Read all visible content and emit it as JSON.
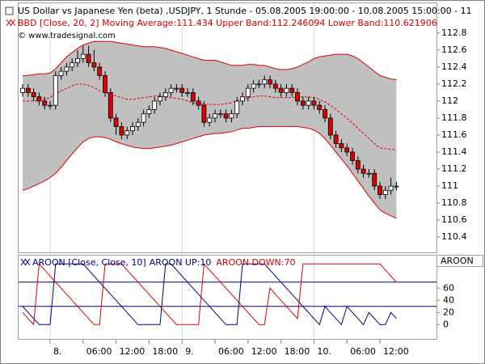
{
  "chart_data": [
    {
      "type": "candlestick",
      "title": "US Dollar vs Japanese Yen (beta) ,USDJPY, 1 Stunde - 05.08.2005 19:00:00 - 10.08.2005 15:00:00 - 11",
      "subtitle": "BBD [Close, 20, 2] Moving Average:111.434 Upper Band:112.246094 Lower Band:110.621906",
      "credit": "© www.tradesignal.com",
      "categories": [
        null,
        null,
        null,
        null,
        null,
        "8.",
        null,
        null,
        null,
        null,
        null,
        "06:00",
        null,
        null,
        null,
        null,
        null,
        "12:00",
        null,
        null,
        null,
        null,
        null,
        "18:00",
        null,
        null,
        null,
        null,
        null,
        "9.",
        null,
        null,
        null,
        null,
        null,
        "06:00",
        null,
        null,
        null,
        null,
        null,
        "12:00",
        null,
        null,
        null,
        null,
        null,
        "18:00",
        null,
        null,
        null,
        null,
        null,
        "10.",
        null,
        null,
        null,
        null,
        null,
        "06:00",
        null,
        null,
        null,
        null,
        null,
        "12:00",
        null,
        null,
        null
      ],
      "open": [
        112.1,
        112.15,
        112.1,
        112.05,
        112.0,
        111.95,
        111.95,
        112.3,
        112.35,
        112.4,
        112.45,
        112.5,
        112.55,
        112.45,
        112.4,
        112.3,
        112.1,
        111.8,
        111.7,
        111.6,
        111.65,
        111.7,
        111.75,
        111.85,
        111.9,
        112.0,
        112.05,
        112.1,
        112.15,
        112.15,
        112.1,
        112.1,
        112.0,
        111.95,
        111.75,
        111.8,
        111.85,
        111.85,
        111.8,
        111.85,
        112.0,
        112.05,
        112.15,
        112.2,
        112.2,
        112.25,
        112.2,
        112.15,
        112.1,
        112.15,
        112.1,
        112.0,
        111.95,
        112.0,
        111.95,
        111.9,
        111.8,
        111.6,
        111.5,
        111.45,
        111.4,
        111.3,
        111.2,
        111.15,
        111.15,
        111.0,
        110.9,
        110.95,
        111.0
      ],
      "high": [
        112.2,
        112.2,
        112.15,
        112.1,
        112.05,
        112.0,
        112.35,
        112.4,
        112.45,
        112.5,
        112.6,
        112.65,
        112.65,
        112.6,
        112.45,
        112.35,
        112.15,
        111.85,
        111.75,
        111.7,
        111.75,
        111.8,
        111.9,
        111.95,
        112.05,
        112.1,
        112.15,
        112.2,
        112.2,
        112.2,
        112.15,
        112.15,
        112.05,
        112.0,
        111.85,
        111.9,
        111.9,
        111.9,
        111.9,
        112.05,
        112.1,
        112.2,
        112.25,
        112.25,
        112.3,
        112.3,
        112.25,
        112.2,
        112.2,
        112.2,
        112.15,
        112.05,
        112.05,
        112.05,
        112.0,
        111.95,
        111.85,
        111.65,
        111.55,
        111.5,
        111.45,
        111.35,
        111.25,
        111.2,
        111.2,
        111.05,
        111.0,
        111.1,
        111.05
      ],
      "low": [
        112.05,
        112.05,
        112.0,
        111.95,
        111.9,
        111.9,
        111.9,
        112.25,
        112.3,
        112.35,
        112.4,
        112.45,
        112.4,
        112.35,
        112.25,
        112.05,
        111.75,
        111.6,
        111.55,
        111.55,
        111.6,
        111.65,
        111.7,
        111.8,
        111.85,
        111.95,
        112.0,
        112.05,
        112.1,
        112.05,
        112.05,
        111.95,
        111.9,
        111.7,
        111.7,
        111.75,
        111.8,
        111.75,
        111.75,
        111.8,
        111.95,
        112.0,
        112.1,
        112.15,
        112.15,
        112.15,
        112.1,
        112.05,
        112.05,
        112.05,
        111.95,
        111.9,
        111.9,
        111.9,
        111.85,
        111.75,
        111.55,
        111.45,
        111.4,
        111.35,
        111.25,
        111.15,
        111.1,
        111.1,
        110.95,
        110.85,
        110.85,
        110.9,
        110.95
      ],
      "close": [
        112.15,
        112.1,
        112.05,
        112.0,
        111.95,
        111.95,
        112.3,
        112.35,
        112.4,
        112.45,
        112.5,
        112.55,
        112.45,
        112.4,
        112.3,
        112.1,
        111.8,
        111.7,
        111.6,
        111.65,
        111.7,
        111.75,
        111.85,
        111.9,
        112.0,
        112.05,
        112.1,
        112.15,
        112.15,
        112.1,
        112.1,
        112.0,
        111.95,
        111.75,
        111.8,
        111.85,
        111.85,
        111.8,
        111.85,
        112.0,
        112.05,
        112.15,
        112.2,
        112.2,
        112.25,
        112.2,
        112.15,
        112.1,
        112.15,
        112.1,
        112.0,
        111.95,
        112.0,
        111.95,
        111.9,
        111.8,
        111.6,
        111.5,
        111.45,
        111.4,
        111.3,
        111.2,
        111.15,
        111.15,
        111.0,
        110.9,
        110.95,
        111.0,
        111.0
      ],
      "upper": [
        112.3,
        112.3,
        112.31,
        112.32,
        112.32,
        112.33,
        112.38,
        112.45,
        112.52,
        112.57,
        112.62,
        112.66,
        112.68,
        112.7,
        112.7,
        112.7,
        112.7,
        112.69,
        112.68,
        112.67,
        112.66,
        112.65,
        112.64,
        112.64,
        112.64,
        112.63,
        112.62,
        112.6,
        112.58,
        112.56,
        112.54,
        112.52,
        112.5,
        112.48,
        112.48,
        112.48,
        112.46,
        112.44,
        112.42,
        112.42,
        112.42,
        112.43,
        112.43,
        112.42,
        112.42,
        112.4,
        112.38,
        112.37,
        112.37,
        112.38,
        112.4,
        112.43,
        112.46,
        112.5,
        112.52,
        112.53,
        112.54,
        112.55,
        112.55,
        112.55,
        112.53,
        112.5,
        112.45,
        112.4,
        112.35,
        112.3,
        112.28,
        112.26,
        112.25
      ],
      "middle": [
        112.0,
        112.0,
        112.0,
        112.01,
        112.02,
        112.04,
        112.08,
        112.12,
        112.15,
        112.18,
        112.2,
        112.2,
        112.18,
        112.16,
        112.12,
        112.1,
        112.08,
        112.06,
        112.04,
        112.02,
        112.02,
        112.03,
        112.04,
        112.05,
        112.06,
        112.06,
        112.05,
        112.04,
        112.03,
        112.02,
        112.0,
        111.98,
        111.97,
        111.96,
        111.96,
        111.96,
        111.96,
        111.97,
        111.98,
        112.0,
        112.02,
        112.04,
        112.05,
        112.06,
        112.06,
        112.05,
        112.04,
        112.04,
        112.04,
        112.04,
        112.05,
        112.05,
        112.05,
        112.04,
        112.02,
        111.99,
        111.95,
        111.9,
        111.85,
        111.8,
        111.74,
        111.68,
        111.62,
        111.56,
        111.5,
        111.45,
        111.44,
        111.43,
        111.43
      ],
      "lower": [
        110.95,
        110.97,
        111.0,
        111.03,
        111.06,
        111.1,
        111.15,
        111.22,
        111.3,
        111.38,
        111.45,
        111.52,
        111.56,
        111.58,
        111.58,
        111.57,
        111.55,
        111.52,
        111.5,
        111.48,
        111.46,
        111.45,
        111.44,
        111.44,
        111.45,
        111.46,
        111.47,
        111.48,
        111.5,
        111.52,
        111.54,
        111.56,
        111.58,
        111.6,
        111.61,
        111.62,
        111.62,
        111.63,
        111.64,
        111.66,
        111.68,
        111.68,
        111.69,
        111.7,
        111.7,
        111.7,
        111.7,
        111.7,
        111.7,
        111.7,
        111.7,
        111.69,
        111.68,
        111.66,
        111.62,
        111.56,
        111.48,
        111.4,
        111.32,
        111.24,
        111.15,
        111.06,
        110.97,
        110.88,
        110.8,
        110.72,
        110.68,
        110.65,
        110.62
      ],
      "up_color": "#ffffff",
      "down_color": "#dd0000",
      "band_color": "#dd0000",
      "band_fill": "#c0c0c0",
      "ylim": [
        110.22,
        113.16
      ],
      "yticks": [
        110.4,
        110.6,
        110.8,
        111,
        111.2,
        111.4,
        111.6,
        111.8,
        112,
        112.2,
        112.4,
        112.6,
        112.8
      ]
    },
    {
      "type": "line",
      "title": "AROON [Close, Close, 10]",
      "axis_label": "AROON",
      "series": [
        {
          "name": "AROON UP:10",
          "color": "#000080",
          "values": [
            30,
            20,
            10,
            0,
            0,
            0,
            100,
            100,
            100,
            100,
            100,
            100,
            90,
            80,
            70,
            60,
            50,
            40,
            30,
            20,
            10,
            0,
            0,
            0,
            0,
            0,
            100,
            100,
            90,
            80,
            70,
            60,
            50,
            40,
            30,
            20,
            10,
            0,
            0,
            0,
            100,
            100,
            100,
            100,
            100,
            90,
            80,
            70,
            60,
            50,
            40,
            30,
            20,
            10,
            0,
            30,
            20,
            10,
            0,
            30,
            20,
            10,
            0,
            20,
            10,
            0,
            0,
            20,
            10
          ]
        },
        {
          "name": "AROON DOWN:70",
          "color": "#dd0000",
          "values": [
            20,
            10,
            0,
            100,
            90,
            80,
            70,
            60,
            50,
            40,
            30,
            20,
            10,
            0,
            0,
            100,
            100,
            100,
            100,
            90,
            80,
            70,
            60,
            50,
            40,
            30,
            20,
            10,
            0,
            0,
            0,
            0,
            0,
            100,
            90,
            80,
            70,
            60,
            50,
            40,
            30,
            20,
            10,
            0,
            0,
            60,
            50,
            40,
            30,
            20,
            10,
            100,
            100,
            100,
            100,
            100,
            100,
            100,
            100,
            100,
            100,
            100,
            100,
            100,
            100,
            100,
            90,
            80,
            70
          ]
        }
      ],
      "levels": [
        30,
        70
      ],
      "level_color": "#000080",
      "ylim": [
        -25,
        115
      ],
      "yticks": [
        0,
        20,
        40,
        60
      ]
    }
  ]
}
